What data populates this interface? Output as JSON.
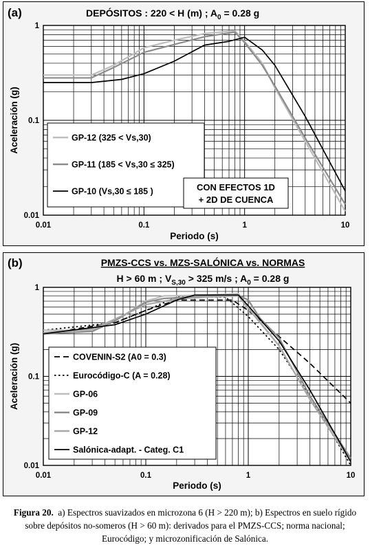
{
  "chart_data": [
    {
      "type": "line",
      "panel_label": "(a)",
      "title": "DEPÓSITOS :   220 < H  (m)  ;  A",
      "title_sub": "0",
      "title_tail": " = 0.28 g",
      "xlabel": "Periodo (s)",
      "ylabel": "Aceleración (g)",
      "x_scale": "log",
      "y_scale": "log",
      "xlim": [
        0.01,
        10
      ],
      "ylim": [
        0.01,
        1
      ],
      "x_ticks": [
        "0.01",
        "0.1",
        "1",
        "10"
      ],
      "y_ticks": [
        "0.01",
        "0.1",
        "1"
      ],
      "grid": true,
      "legend_position": "lower-left",
      "annotation": [
        "CON EFECTOS 1D",
        "+ 2D DE CUENCA"
      ],
      "series": [
        {
          "name": "GP-12 (325 < Vs,30)",
          "color": "#bdbdbd",
          "x": [
            0.01,
            0.03,
            0.05,
            0.1,
            0.2,
            0.4,
            0.8,
            1.0,
            1.5,
            2.0,
            4.0,
            10.0
          ],
          "y": [
            0.3,
            0.3,
            0.38,
            0.58,
            0.7,
            0.82,
            0.88,
            0.68,
            0.4,
            0.22,
            0.06,
            0.011
          ]
        },
        {
          "name": "GP-11 (185 < Vs,30 ≤ 325)",
          "color": "#8c8c8c",
          "x": [
            0.01,
            0.03,
            0.05,
            0.1,
            0.2,
            0.4,
            0.8,
            1.0,
            1.5,
            2.0,
            4.0,
            10.0
          ],
          "y": [
            0.28,
            0.28,
            0.36,
            0.52,
            0.63,
            0.76,
            0.85,
            0.66,
            0.38,
            0.23,
            0.065,
            0.013
          ]
        },
        {
          "name": "GP-10 (Vs,30 ≤ 185 )",
          "color": "#000000",
          "x": [
            0.01,
            0.03,
            0.06,
            0.1,
            0.2,
            0.4,
            0.7,
            1.0,
            1.5,
            2.0,
            4.0,
            10.0
          ],
          "y": [
            0.25,
            0.25,
            0.27,
            0.31,
            0.42,
            0.62,
            0.68,
            0.75,
            0.55,
            0.38,
            0.11,
            0.018
          ]
        }
      ]
    },
    {
      "type": "line",
      "panel_label": "(b)",
      "title": "PMZS-CCS vs. MZS-SALÓNICA vs. NORMAS",
      "subtitle_parts": [
        "H > 60  m  ;  V",
        "S,30",
        "  > 325 m/s  ;  A",
        "0",
        " = 0.28 g"
      ],
      "xlabel": "Periodo (s)",
      "ylabel": "Aceleración (g)",
      "x_scale": "log",
      "y_scale": "log",
      "xlim": [
        0.01,
        10
      ],
      "ylim": [
        0.01,
        1
      ],
      "x_ticks": [
        "0.01",
        "0.1",
        "1",
        "10"
      ],
      "y_ticks": [
        "0.01",
        "0.1",
        "1"
      ],
      "grid": true,
      "legend_position": "lower-left",
      "series": [
        {
          "name": "COVENIN-S2 (A0 = 0.3)",
          "color": "#000000",
          "dash": "dashed",
          "x": [
            0.01,
            0.05,
            0.1,
            0.2,
            0.7,
            1.0,
            2.0,
            4.0,
            10.0
          ],
          "y": [
            0.3,
            0.4,
            0.55,
            0.72,
            0.72,
            0.55,
            0.28,
            0.14,
            0.05
          ]
        },
        {
          "name": "Eurocódigo-C (A = 0.28)",
          "color": "#000000",
          "dash": "dotted",
          "x": [
            0.01,
            0.05,
            0.1,
            0.2,
            0.6,
            1.0,
            2.0,
            4.0,
            10.0
          ],
          "y": [
            0.33,
            0.4,
            0.55,
            0.78,
            0.78,
            0.47,
            0.2,
            0.06,
            0.01
          ]
        },
        {
          "name": "GP-06",
          "color": "#bdbdbd",
          "x": [
            0.01,
            0.03,
            0.05,
            0.1,
            0.15,
            0.4,
            0.8,
            1.0,
            2.0,
            4.0,
            10.0
          ],
          "y": [
            0.33,
            0.33,
            0.42,
            0.7,
            0.8,
            0.82,
            0.85,
            0.6,
            0.22,
            0.055,
            0.011
          ]
        },
        {
          "name": "GP-09",
          "color": "#8c8c8c",
          "x": [
            0.01,
            0.03,
            0.05,
            0.1,
            0.15,
            0.4,
            0.8,
            1.0,
            1.3,
            2.0,
            4.0,
            10.0
          ],
          "y": [
            0.3,
            0.32,
            0.42,
            0.68,
            0.75,
            0.8,
            0.82,
            0.72,
            0.45,
            0.27,
            0.06,
            0.012
          ]
        },
        {
          "name": "GP-12",
          "color": "#a8a8a8",
          "x": [
            0.01,
            0.03,
            0.05,
            0.1,
            0.2,
            0.4,
            0.8,
            1.0,
            2.0,
            4.0,
            10.0
          ],
          "y": [
            0.31,
            0.34,
            0.44,
            0.64,
            0.74,
            0.78,
            0.8,
            0.58,
            0.22,
            0.055,
            0.011
          ]
        },
        {
          "name": "Salónica-adapt. - Categ. C1",
          "color": "#000000",
          "x": [
            0.01,
            0.05,
            0.1,
            0.2,
            0.3,
            0.8,
            1.0,
            2.0,
            4.0,
            10.0
          ],
          "y": [
            0.3,
            0.38,
            0.5,
            0.72,
            0.82,
            0.82,
            0.62,
            0.25,
            0.07,
            0.011
          ]
        }
      ]
    }
  ],
  "caption": {
    "figure_label": "Figura 20.",
    "text": "a) Espectros suavizados en microzona 6 (H > 220 m); b) Espectros en suelo rígido sobre depósitos no-someros (H  > 60 m): derivados para el PMZS-CCS; norma nacional; Eurocódigo; y microzonificación de Salónica."
  }
}
